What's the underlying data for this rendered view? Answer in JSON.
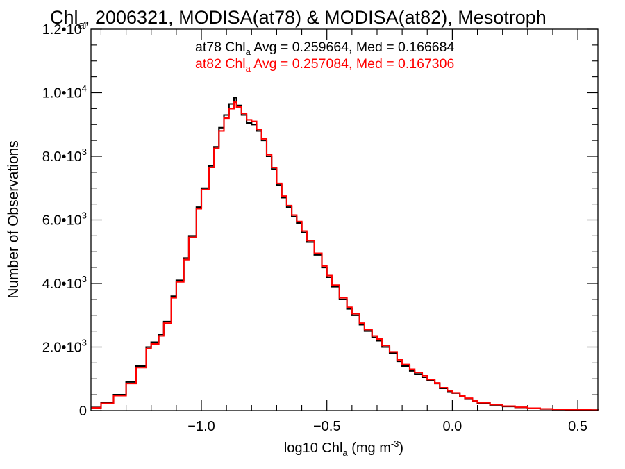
{
  "chart_data": {
    "type": "line",
    "title": {
      "pre": "Chl",
      "sub": "a",
      "post": ", 2006321, MODISA(at78) & MODISA(at82), Mesotroph"
    },
    "xlabel": {
      "pre": "log10 Chl",
      "sub": "a",
      "post": " (mg m",
      "sup": "-3",
      "end": ")"
    },
    "ylabel": "Number of Observations",
    "xlim": [
      -1.44,
      0.58
    ],
    "ylim": [
      0,
      12000
    ],
    "x_ticks": [
      -1.0,
      -0.5,
      0.0,
      0.5
    ],
    "x_tick_labels": [
      "−1.0",
      "−0.5",
      "0.0",
      "0.5"
    ],
    "y_ticks": [
      0,
      2000,
      4000,
      6000,
      8000,
      10000,
      12000
    ],
    "y_tick_labels": [
      {
        "text": "0"
      },
      {
        "text": "2.0•10",
        "exp": "3"
      },
      {
        "text": "4.0•10",
        "exp": "3"
      },
      {
        "text": "6.0•10",
        "exp": "3"
      },
      {
        "text": "8.0•10",
        "exp": "3"
      },
      {
        "text": "1.0•10",
        "exp": "4"
      },
      {
        "text": "1.2•10",
        "exp": "4"
      }
    ],
    "grid": false,
    "legend_placement": "top-center",
    "annotations": [
      {
        "series": "at78",
        "pre": "at78 Chl",
        "sub": "a",
        "post": " Avg = 0.259664, Med = 0.166684",
        "color": "#000000"
      },
      {
        "series": "at82",
        "pre": "at82 Chl",
        "sub": "a",
        "post": " Avg = 0.257084, Med = 0.167306",
        "color": "#ff0000"
      }
    ],
    "series": [
      {
        "name": "at78",
        "color": "#000000",
        "points": [
          [
            -1.44,
            100
          ],
          [
            -1.4,
            250
          ],
          [
            -1.35,
            500
          ],
          [
            -1.3,
            900
          ],
          [
            -1.26,
            1400
          ],
          [
            -1.22,
            2000
          ],
          [
            -1.2,
            2150
          ],
          [
            -1.17,
            2400
          ],
          [
            -1.15,
            2800
          ],
          [
            -1.12,
            3600
          ],
          [
            -1.1,
            4100
          ],
          [
            -1.07,
            4800
          ],
          [
            -1.05,
            5500
          ],
          [
            -1.02,
            6400
          ],
          [
            -1.0,
            7000
          ],
          [
            -0.97,
            7700
          ],
          [
            -0.95,
            8300
          ],
          [
            -0.93,
            8900
          ],
          [
            -0.91,
            9300
          ],
          [
            -0.89,
            9650
          ],
          [
            -0.87,
            9850
          ],
          [
            -0.86,
            9600
          ],
          [
            -0.84,
            9300
          ],
          [
            -0.82,
            9050
          ],
          [
            -0.8,
            9000
          ],
          [
            -0.78,
            8800
          ],
          [
            -0.76,
            8500
          ],
          [
            -0.74,
            8000
          ],
          [
            -0.72,
            7600
          ],
          [
            -0.7,
            7100
          ],
          [
            -0.68,
            6700
          ],
          [
            -0.66,
            6400
          ],
          [
            -0.64,
            6100
          ],
          [
            -0.62,
            5900
          ],
          [
            -0.6,
            5600
          ],
          [
            -0.58,
            5300
          ],
          [
            -0.55,
            4900
          ],
          [
            -0.52,
            4500
          ],
          [
            -0.5,
            4200
          ],
          [
            -0.48,
            3900
          ],
          [
            -0.45,
            3500
          ],
          [
            -0.42,
            3200
          ],
          [
            -0.4,
            3000
          ],
          [
            -0.37,
            2700
          ],
          [
            -0.35,
            2500
          ],
          [
            -0.32,
            2300
          ],
          [
            -0.3,
            2200
          ],
          [
            -0.28,
            2000
          ],
          [
            -0.25,
            1800
          ],
          [
            -0.22,
            1550
          ],
          [
            -0.2,
            1400
          ],
          [
            -0.17,
            1250
          ],
          [
            -0.15,
            1150
          ],
          [
            -0.12,
            1050
          ],
          [
            -0.1,
            950
          ],
          [
            -0.07,
            850
          ],
          [
            -0.05,
            700
          ],
          [
            -0.02,
            600
          ],
          [
            0.0,
            550
          ],
          [
            0.03,
            450
          ],
          [
            0.05,
            380
          ],
          [
            0.08,
            300
          ],
          [
            0.1,
            240
          ],
          [
            0.15,
            180
          ],
          [
            0.2,
            130
          ],
          [
            0.25,
            100
          ],
          [
            0.3,
            70
          ],
          [
            0.35,
            50
          ],
          [
            0.4,
            40
          ],
          [
            0.45,
            30
          ],
          [
            0.5,
            25
          ],
          [
            0.55,
            15
          ],
          [
            0.58,
            10
          ]
        ]
      },
      {
        "name": "at82",
        "color": "#ff0000",
        "points": [
          [
            -1.44,
            90
          ],
          [
            -1.4,
            230
          ],
          [
            -1.35,
            470
          ],
          [
            -1.3,
            850
          ],
          [
            -1.26,
            1350
          ],
          [
            -1.22,
            1950
          ],
          [
            -1.2,
            2100
          ],
          [
            -1.17,
            2350
          ],
          [
            -1.15,
            2750
          ],
          [
            -1.12,
            3550
          ],
          [
            -1.1,
            4050
          ],
          [
            -1.07,
            4750
          ],
          [
            -1.05,
            5450
          ],
          [
            -1.02,
            6350
          ],
          [
            -1.0,
            6950
          ],
          [
            -0.97,
            7650
          ],
          [
            -0.95,
            8250
          ],
          [
            -0.93,
            8800
          ],
          [
            -0.91,
            9200
          ],
          [
            -0.89,
            9500
          ],
          [
            -0.87,
            9700
          ],
          [
            -0.86,
            9550
          ],
          [
            -0.84,
            9350
          ],
          [
            -0.82,
            9150
          ],
          [
            -0.8,
            9100
          ],
          [
            -0.78,
            8850
          ],
          [
            -0.76,
            8550
          ],
          [
            -0.74,
            8050
          ],
          [
            -0.72,
            7650
          ],
          [
            -0.7,
            7150
          ],
          [
            -0.68,
            6750
          ],
          [
            -0.66,
            6450
          ],
          [
            -0.64,
            6150
          ],
          [
            -0.62,
            5950
          ],
          [
            -0.6,
            5650
          ],
          [
            -0.58,
            5350
          ],
          [
            -0.55,
            4950
          ],
          [
            -0.52,
            4550
          ],
          [
            -0.5,
            4250
          ],
          [
            -0.48,
            3950
          ],
          [
            -0.45,
            3550
          ],
          [
            -0.42,
            3250
          ],
          [
            -0.4,
            3050
          ],
          [
            -0.37,
            2750
          ],
          [
            -0.35,
            2550
          ],
          [
            -0.32,
            2350
          ],
          [
            -0.3,
            2250
          ],
          [
            -0.28,
            2050
          ],
          [
            -0.25,
            1850
          ],
          [
            -0.22,
            1600
          ],
          [
            -0.2,
            1450
          ],
          [
            -0.17,
            1300
          ],
          [
            -0.15,
            1200
          ],
          [
            -0.12,
            1100
          ],
          [
            -0.1,
            980
          ],
          [
            -0.07,
            870
          ],
          [
            -0.05,
            720
          ],
          [
            -0.02,
            620
          ],
          [
            0.0,
            560
          ],
          [
            0.03,
            460
          ],
          [
            0.05,
            390
          ],
          [
            0.08,
            310
          ],
          [
            0.1,
            250
          ],
          [
            0.15,
            190
          ],
          [
            0.2,
            140
          ],
          [
            0.25,
            105
          ],
          [
            0.3,
            75
          ],
          [
            0.35,
            55
          ],
          [
            0.4,
            42
          ],
          [
            0.45,
            32
          ],
          [
            0.5,
            26
          ],
          [
            0.55,
            16
          ],
          [
            0.58,
            10
          ]
        ]
      }
    ]
  }
}
